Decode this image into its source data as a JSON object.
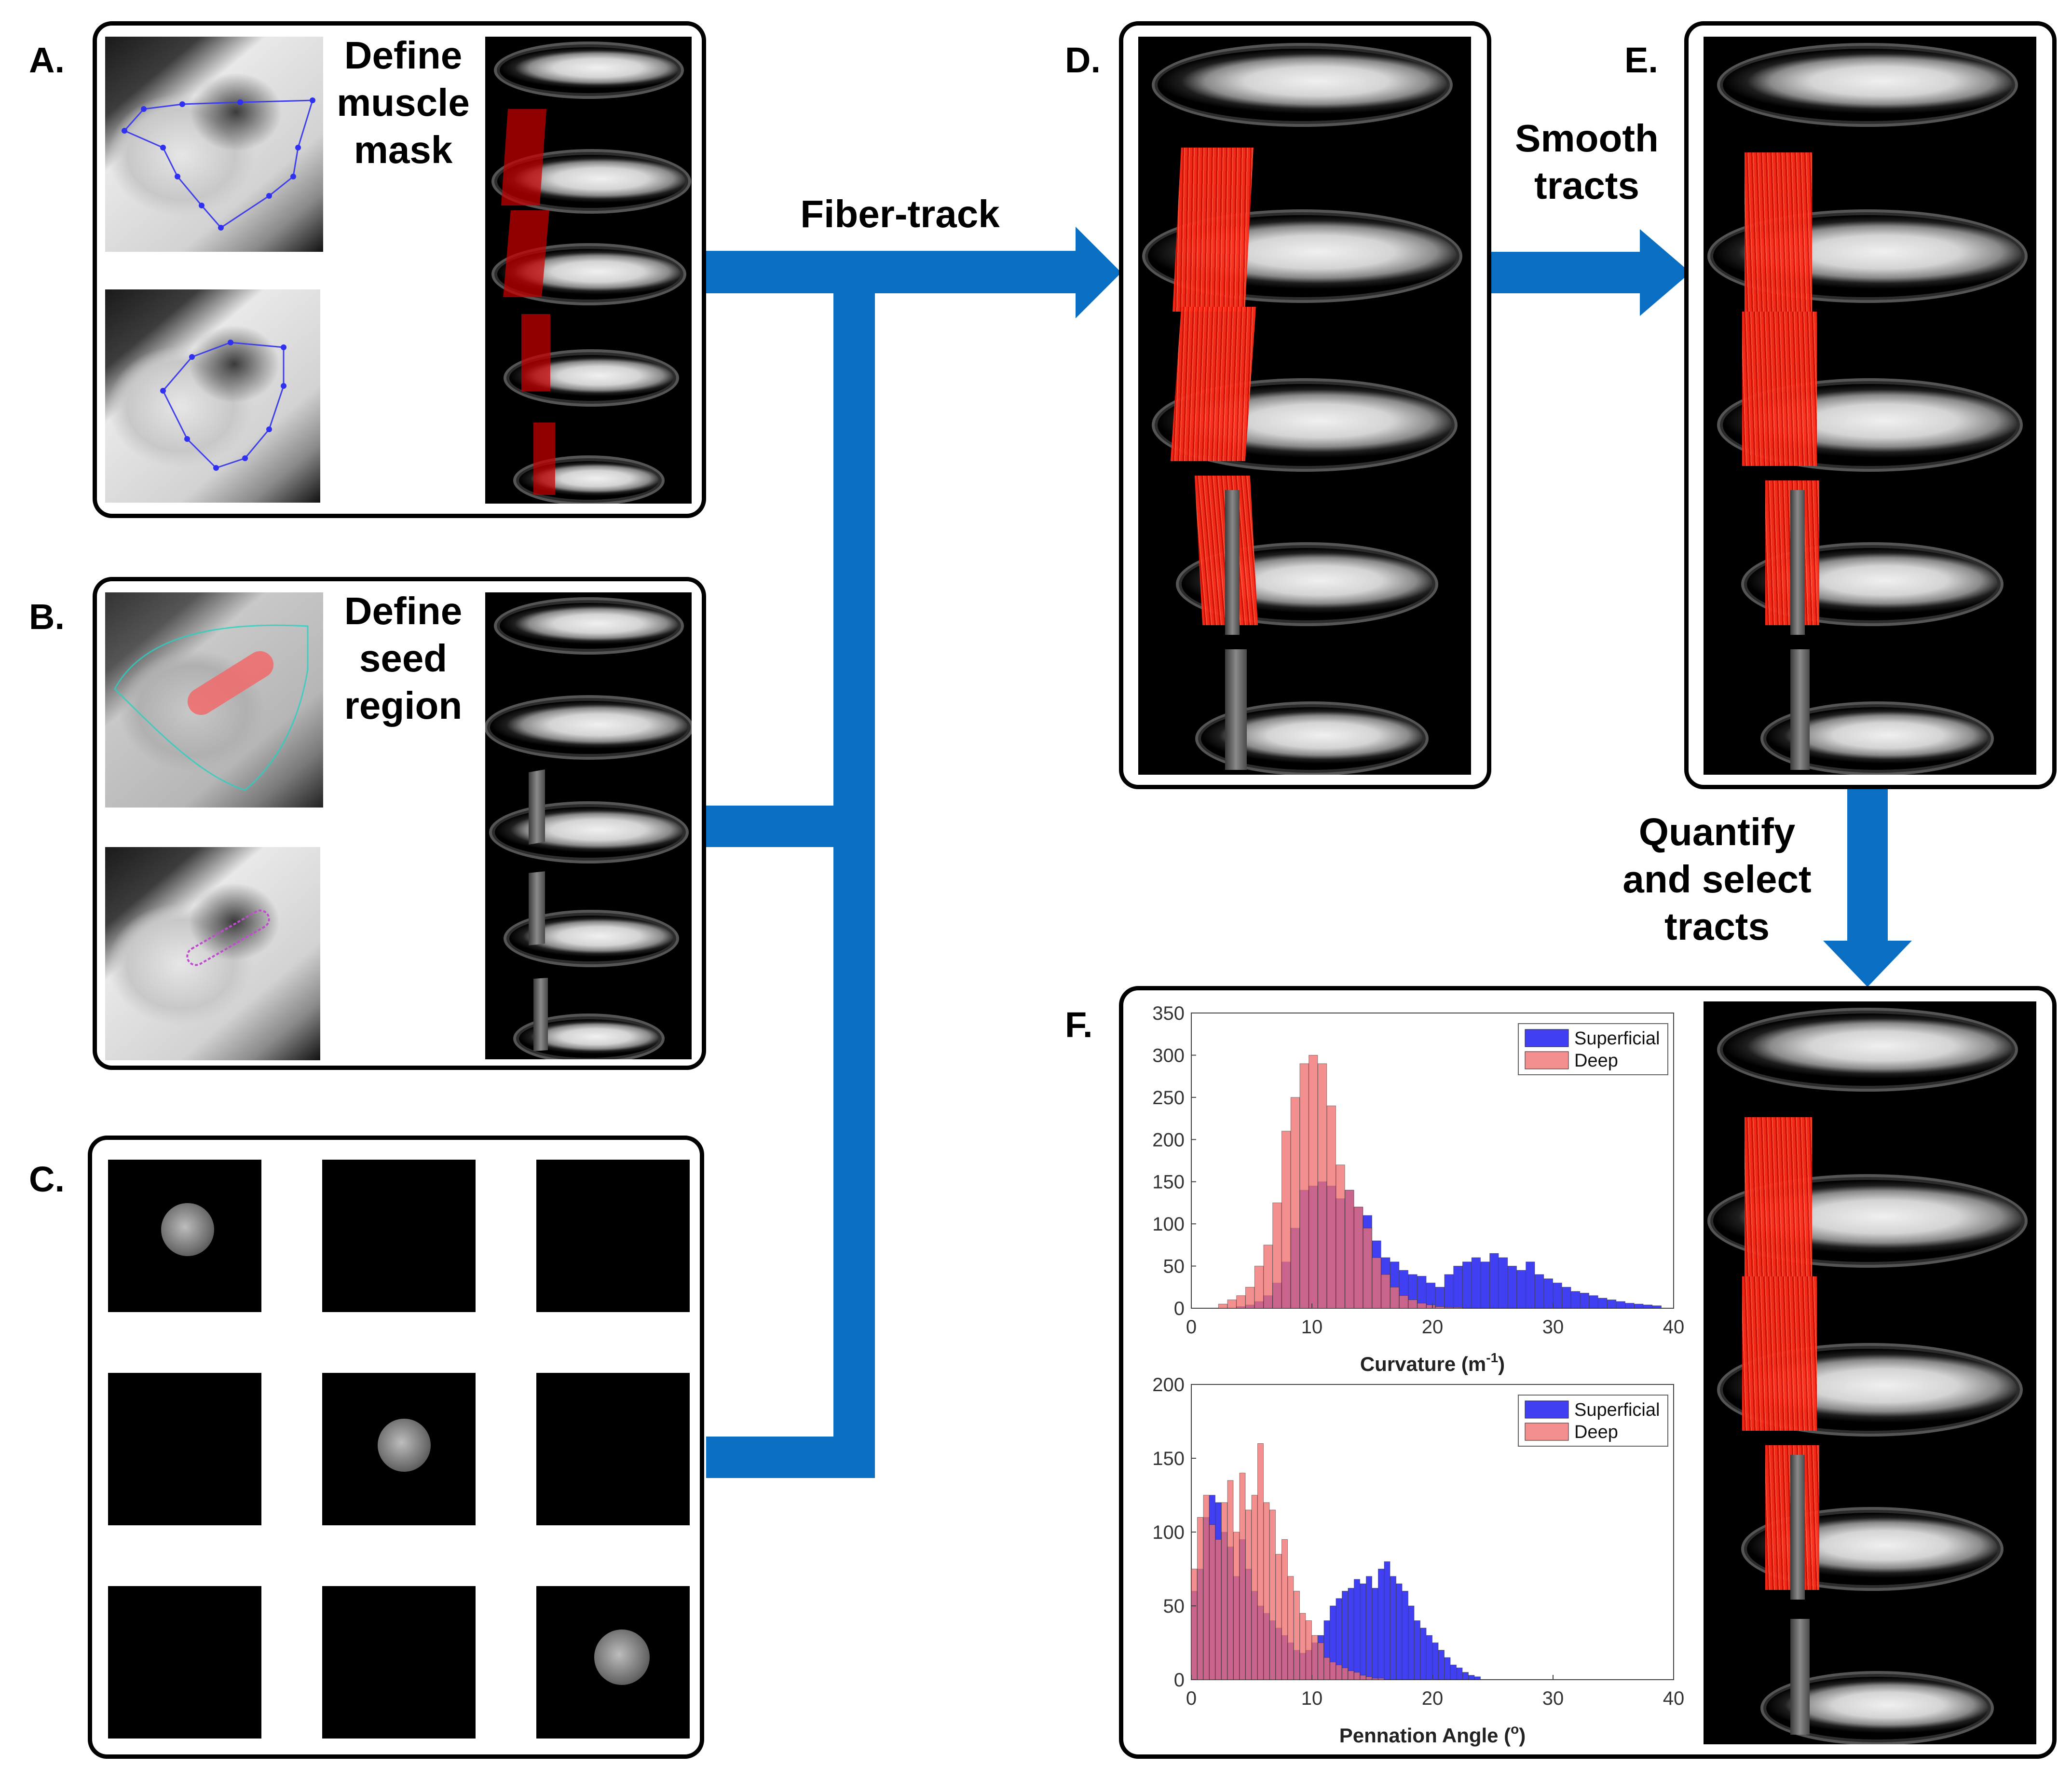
{
  "panels": {
    "A": {
      "label": "A.",
      "caption": [
        "Define",
        "muscle",
        "mask"
      ]
    },
    "B": {
      "label": "B.",
      "caption": [
        "Define",
        "seed",
        "region"
      ]
    },
    "C": {
      "label": "C."
    },
    "D": {
      "label": "D."
    },
    "E": {
      "label": "E."
    },
    "F": {
      "label": "F."
    }
  },
  "arrows": {
    "fiber_track": "Fiber-track",
    "smooth": [
      "Smooth",
      "tracts"
    ],
    "quantify": [
      "Quantify",
      "and select",
      "tracts"
    ]
  },
  "colors": {
    "flow": "#0a6fc2",
    "superficial": "#1f1ff0",
    "deep": "#f07070",
    "overlap": "#8a1a4a"
  },
  "chart_data": [
    {
      "type": "bar",
      "title": "",
      "xlabel": "Curvature (m",
      "xlabel_sup": "-1",
      "xlabel_end": ")",
      "ylabel": "",
      "xlim": [
        0,
        40
      ],
      "ylim": [
        0,
        350
      ],
      "xticks": [
        0,
        10,
        20,
        30,
        40
      ],
      "yticks": [
        0,
        50,
        100,
        150,
        200,
        250,
        300,
        350
      ],
      "legend": "top-right",
      "bin_width": 0.75,
      "bin_start": 2.25,
      "series": [
        {
          "name": "Superficial",
          "values": [
            0,
            0,
            2,
            4,
            8,
            15,
            30,
            55,
            95,
            140,
            145,
            150,
            145,
            130,
            140,
            120,
            110,
            80,
            60,
            55,
            45,
            40,
            38,
            30,
            25,
            40,
            50,
            55,
            60,
            55,
            65,
            60,
            50,
            45,
            55,
            40,
            35,
            30,
            25,
            20,
            18,
            15,
            12,
            10,
            8,
            6,
            5,
            4,
            3
          ]
        },
        {
          "name": "Deep",
          "values": [
            5,
            10,
            15,
            25,
            50,
            75,
            125,
            210,
            250,
            290,
            300,
            290,
            240,
            170,
            140,
            120,
            95,
            60,
            40,
            25,
            15,
            10,
            6,
            4,
            2,
            1,
            1,
            0,
            0,
            0,
            0,
            0,
            0,
            0,
            0,
            0,
            0,
            0,
            0,
            0,
            0,
            0,
            0,
            0,
            0,
            0,
            0,
            0,
            0
          ]
        }
      ]
    },
    {
      "type": "bar",
      "title": "",
      "xlabel": "Pennation Angle (",
      "xlabel_sup": "o",
      "xlabel_end": ")",
      "ylabel": "",
      "xlim": [
        0,
        40
      ],
      "ylim": [
        0,
        200
      ],
      "xticks": [
        0,
        10,
        20,
        30,
        40
      ],
      "yticks": [
        0,
        50,
        100,
        150,
        200
      ],
      "legend": "top-right",
      "bin_width": 0.5,
      "bin_start": 0.0,
      "series": [
        {
          "name": "Superficial",
          "values": [
            60,
            75,
            110,
            125,
            120,
            100,
            90,
            70,
            95,
            75,
            60,
            50,
            45,
            40,
            35,
            30,
            25,
            20,
            18,
            20,
            25,
            30,
            40,
            50,
            55,
            60,
            62,
            68,
            65,
            70,
            62,
            75,
            80,
            70,
            65,
            60,
            50,
            40,
            35,
            30,
            25,
            20,
            15,
            10,
            8,
            5,
            3,
            2
          ]
        },
        {
          "name": "Deep",
          "values": [
            75,
            110,
            125,
            105,
            95,
            120,
            135,
            100,
            140,
            115,
            125,
            160,
            120,
            115,
            85,
            95,
            70,
            60,
            45,
            40,
            30,
            25,
            15,
            12,
            10,
            8,
            6,
            5,
            3,
            2,
            1,
            1,
            0,
            0,
            0,
            0,
            0,
            0,
            0,
            0,
            0,
            0,
            0,
            0,
            0,
            0,
            0,
            0
          ]
        }
      ]
    }
  ]
}
